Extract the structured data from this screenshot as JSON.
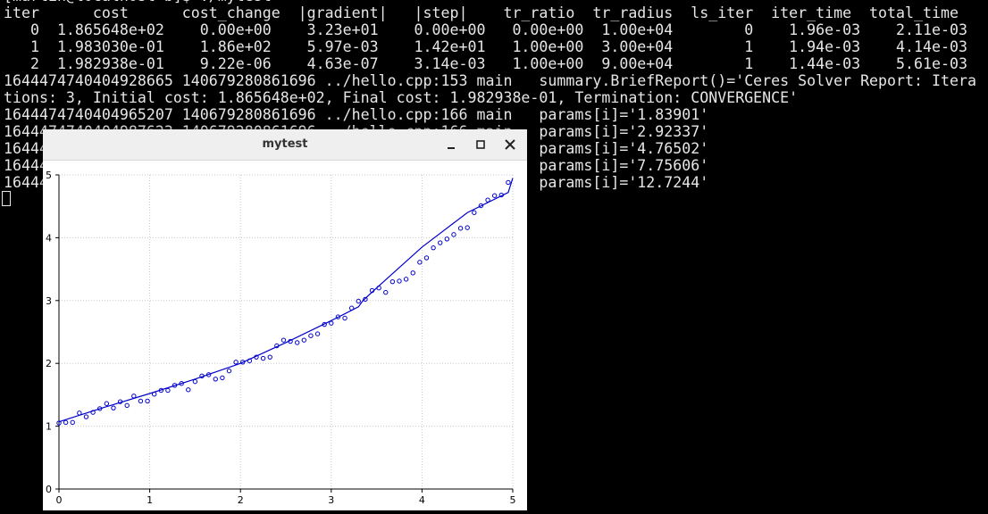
{
  "terminal": {
    "lines": [
      "[martin@localhost b]$ ./mytest",
      "iter      cost      cost_change  |gradient|   |step|    tr_ratio  tr_radius  ls_iter  iter_time  total_time",
      "   0  1.865648e+02    0.00e+00    3.23e+01    0.00e+00   0.00e+00  1.00e+04        0    1.96e-03    2.11e-03",
      "   1  1.983030e-01    1.86e+02    5.97e-03    1.42e+01   1.00e+00  3.00e+04        1    1.94e-03    4.14e-03",
      "   2  1.982938e-01    9.22e-06    4.63e-07    3.14e-03   1.00e+00  9.00e+04        1    1.44e-03    5.61e-03",
      "1644474740404928665 140679280861696 ../hello.cpp:153 main   summary.BriefReport()='Ceres Solver Report: Itera",
      "tions: 3, Initial cost: 1.865648e+02, Final cost: 1.982938e-01, Termination: CONVERGENCE'",
      "1644474740404965207 140679280861696 ../hello.cpp:166 main   params[i]='1.83901'",
      "1644474740404987623 140679280861696 ../hello.cpp:166 main   params[i]='2.92337'",
      "16444                                                       params[i]='4.76502'",
      "16444                                                       params[i]='7.75606'",
      "16444                                                       params[i]='12.7244'"
    ]
  },
  "window": {
    "title": "mytest"
  },
  "chart_data": {
    "type": "scatter",
    "xlim": [
      0,
      5
    ],
    "ylim": [
      0,
      5
    ],
    "xticks": [
      0,
      1,
      2,
      3,
      4,
      5
    ],
    "yticks": [
      0,
      1,
      2,
      3,
      4,
      5
    ],
    "grid": true,
    "series": [
      {
        "type": "scatter",
        "color": "#0000cc",
        "x": [
          0,
          0.075,
          0.15,
          0.225,
          0.3,
          0.375,
          0.45,
          0.525,
          0.6,
          0.675,
          0.75,
          0.825,
          0.9,
          0.975,
          1.05,
          1.125,
          1.2,
          1.275,
          1.35,
          1.425,
          1.5,
          1.575,
          1.65,
          1.725,
          1.8,
          1.875,
          1.95,
          2.025,
          2.1,
          2.175,
          2.25,
          2.325,
          2.4,
          2.475,
          2.55,
          2.625,
          2.7,
          2.775,
          2.85,
          2.925,
          3.0,
          3.075,
          3.15,
          3.225,
          3.3,
          3.375,
          3.45,
          3.525,
          3.6,
          3.675,
          3.75,
          3.825,
          3.9,
          3.975,
          4.05,
          4.125,
          4.2,
          4.275,
          4.35,
          4.425,
          4.5,
          4.575,
          4.65,
          4.725,
          4.8,
          4.875,
          4.95
        ],
        "values": [
          1.05,
          1.06,
          1.06,
          1.21,
          1.15,
          1.22,
          1.28,
          1.36,
          1.29,
          1.39,
          1.33,
          1.48,
          1.4,
          1.4,
          1.51,
          1.57,
          1.57,
          1.65,
          1.68,
          1.58,
          1.71,
          1.8,
          1.82,
          1.75,
          1.77,
          1.88,
          2.02,
          2.02,
          2.04,
          2.1,
          2.08,
          2.1,
          2.28,
          2.37,
          2.35,
          2.33,
          2.37,
          2.44,
          2.47,
          2.62,
          2.64,
          2.74,
          2.72,
          2.88,
          2.99,
          3.02,
          3.16,
          3.2,
          3.13,
          3.3,
          3.31,
          3.34,
          3.44,
          3.61,
          3.68,
          3.84,
          3.92,
          3.98,
          4.05,
          4.15,
          4.16,
          4.4,
          4.51,
          4.6,
          4.67,
          4.68,
          4.88
        ]
      },
      {
        "type": "line",
        "color": "#0000cc",
        "x": [
          0,
          0.5,
          1,
          1.5,
          2,
          2.5,
          3,
          3.3,
          3.35,
          3.5,
          4,
          4.5,
          4.95,
          5
        ],
        "values": [
          1.07,
          1.3,
          1.52,
          1.75,
          2.0,
          2.33,
          2.68,
          2.9,
          3.0,
          3.2,
          3.85,
          4.4,
          4.72,
          4.95
        ]
      }
    ]
  }
}
